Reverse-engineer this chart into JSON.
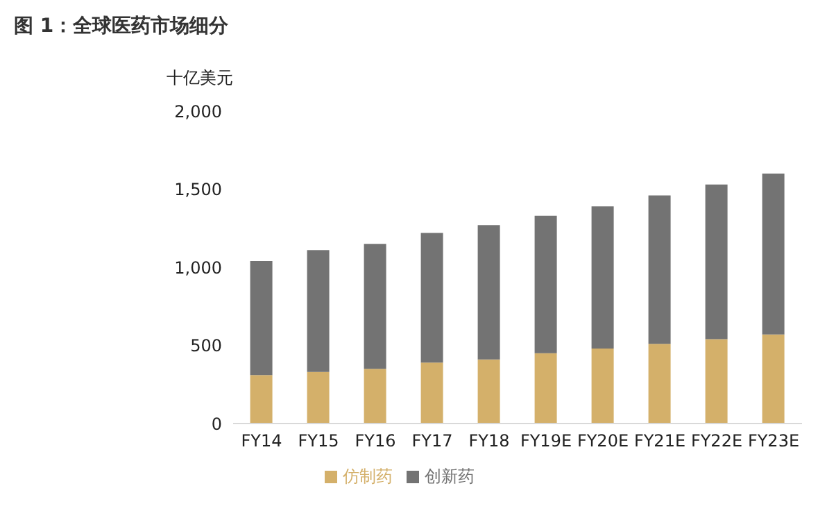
{
  "chart_data": {
    "type": "bar",
    "title": "图 1：全球医药市场细分",
    "ylabel": "十亿美元",
    "categories": [
      "FY14",
      "FY15",
      "FY16",
      "FY17",
      "FY18",
      "FY19E",
      "FY20E",
      "FY21E",
      "FY22E",
      "FY23E"
    ],
    "series": [
      {
        "name": "仿制药",
        "color": "#d4b06a",
        "values": [
          310,
          330,
          350,
          390,
          410,
          450,
          480,
          510,
          540,
          570
        ]
      },
      {
        "name": "创新药",
        "color": "#737373",
        "values": [
          730,
          780,
          800,
          830,
          860,
          880,
          910,
          950,
          990,
          1030
        ]
      }
    ],
    "stacked": true,
    "ylim": [
      0,
      2000
    ],
    "yticks": [
      {
        "value": 0,
        "label": "0"
      },
      {
        "value": 500,
        "label": "500"
      },
      {
        "value": 1000,
        "label": "1,000"
      },
      {
        "value": 1500,
        "label": "1,500"
      },
      {
        "value": 2000,
        "label": "2,000"
      }
    ],
    "grid": false,
    "legend": "bottom"
  }
}
